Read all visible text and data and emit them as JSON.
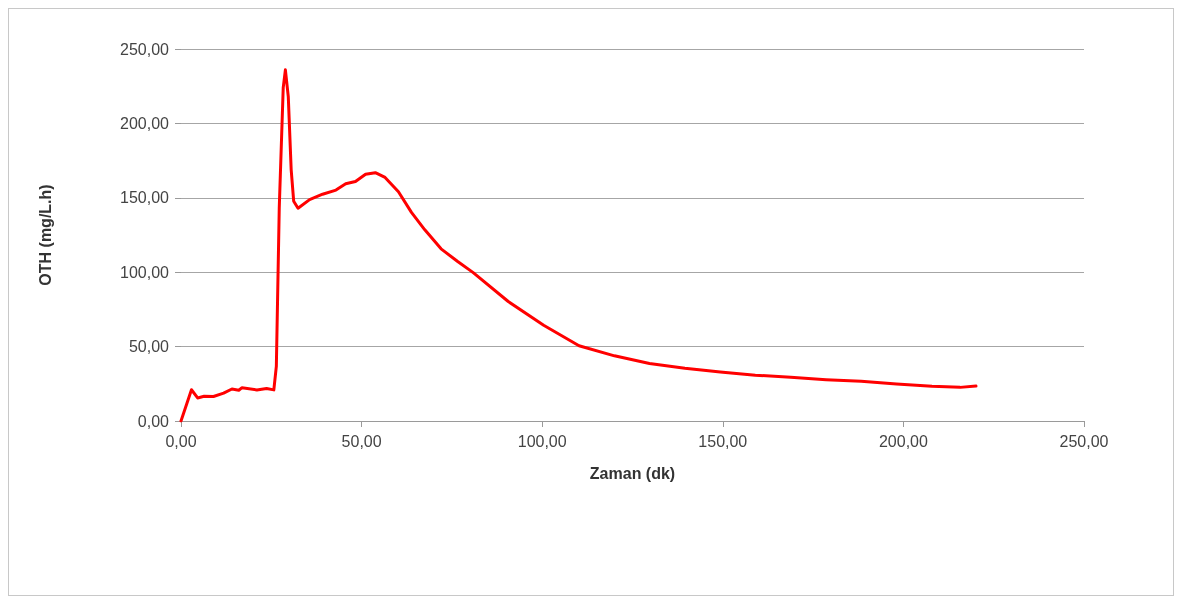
{
  "chart_data": {
    "type": "line",
    "xlabel": "Zaman (dk)",
    "ylabel": "OTH (mg/L.h)",
    "series": [
      {
        "color": "#ff0000",
        "x": [
          0,
          2.9,
          4.6,
          6.4,
          9,
          11.8,
          14.1,
          16,
          16.9,
          21,
          23.7,
          25.7,
          26.4,
          27.2,
          28.3,
          28.9,
          29.7,
          30.5,
          31.2,
          32.4,
          35.6,
          39.2,
          42.9,
          45.6,
          48.3,
          51.1,
          53.8,
          56.5,
          60.2,
          63.8,
          67.5,
          72,
          76.6,
          80.9,
          90.6,
          100.4,
          110.2,
          120,
          129.7,
          139.5,
          149.3,
          159,
          168.8,
          178.6,
          188.3,
          198.1,
          207.9,
          215.7,
          220.1
        ],
        "values": [
          0,
          21,
          15.5,
          16.6,
          16.5,
          18.7,
          21.5,
          20.7,
          22.4,
          20.9,
          21.9,
          20.9,
          36.9,
          143,
          224,
          236,
          218,
          169,
          147.7,
          143,
          148.8,
          152.4,
          155.2,
          159.4,
          160.9,
          165.8,
          166.9,
          163.7,
          154.1,
          140.2,
          128.5,
          115.7,
          107.2,
          99.7,
          80.3,
          64.3,
          50.6,
          43.8,
          38.6,
          35.4,
          32.9,
          30.8,
          29.4,
          27.8,
          26.7,
          24.9,
          23.3,
          22.6,
          23.5
        ]
      }
    ],
    "xlim": [
      0,
      250
    ],
    "xticks": [
      {
        "value": 0,
        "label": "0,00"
      },
      {
        "value": 50,
        "label": "50,00"
      },
      {
        "value": 100,
        "label": "100,00"
      },
      {
        "value": 150,
        "label": "150,00"
      },
      {
        "value": 200,
        "label": "200,00"
      },
      {
        "value": 250,
        "label": "250,00"
      }
    ],
    "ylim": [
      0,
      250
    ],
    "yticks": [
      {
        "value": 0,
        "label": "0,00"
      },
      {
        "value": 50,
        "label": "50,00"
      },
      {
        "value": 100,
        "label": "100,00"
      },
      {
        "value": 150,
        "label": "150,00"
      },
      {
        "value": 200,
        "label": "200,00"
      },
      {
        "value": 250,
        "label": "250,00"
      }
    ],
    "grid": "y",
    "marker": "none",
    "line_style": "solid"
  }
}
